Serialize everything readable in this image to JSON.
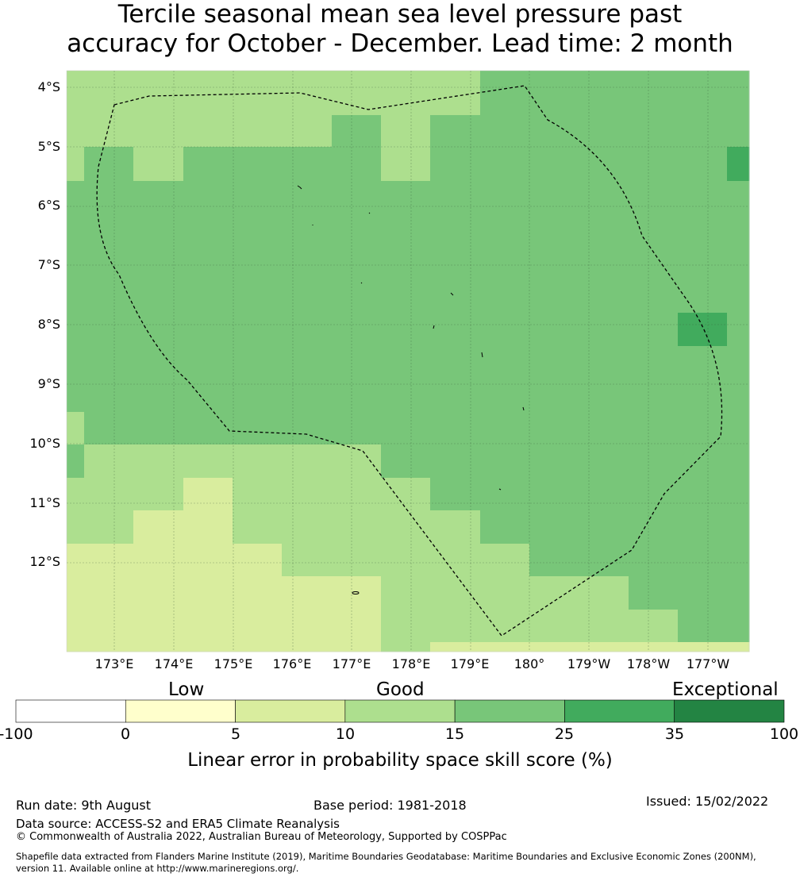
{
  "title_line1": "Tercile seasonal mean sea level pressure past",
  "title_line2": "accuracy for October - December. Lead time: 2 month",
  "map": {
    "lon_range": [
      "172°12'E",
      "176°36'W"
    ],
    "lat_range": [
      "3°36'S",
      "13°24'S"
    ],
    "lat_labels": [
      "4°S",
      "5°S",
      "6°S",
      "7°S",
      "8°S",
      "9°S",
      "10°S",
      "11°S",
      "12°S"
    ],
    "lon_labels": [
      "173°E",
      "174°E",
      "175°E",
      "176°E",
      "177°E",
      "178°E",
      "179°E",
      "180°",
      "179°W",
      "178°W",
      "177°W"
    ],
    "grid_lines": true,
    "colors": {
      "class_5_10": "#d9ed9e",
      "class_10_15": "#addf8e",
      "class_15_25": "#78c679",
      "class_25_35": "#41ab5d"
    },
    "boundary_style": "dashed"
  },
  "colorbar": {
    "categories": [
      "Low",
      "Good",
      "Exceptional"
    ],
    "ticks": [
      "-100",
      "0",
      "5",
      "10",
      "15",
      "25",
      "35",
      "100"
    ],
    "colors": [
      "#ffffff",
      "#ffffcc",
      "#d9ed9e",
      "#addf8e",
      "#78c679",
      "#41ab5d",
      "#238443"
    ],
    "label": "Linear error in probability space skill score (%)"
  },
  "footer": {
    "run_date": "Run date: 9th August",
    "base_period": "Base period: 1981-2018",
    "issued": "Issued: 15/02/2022",
    "data_source": "Data source: ACCESS-S2 and ERA5 Climate Reanalysis",
    "copyright": "© Commonwealth of Australia 2022, Australian Bureau of Meteorology, Supported by COSPPac",
    "shapefile_line1": "Shapefile data extracted from Flanders Marine Institute (2019), Maritime Boundaries Geodatabase: Maritime Boundaries and Exclusive Economic Zones (200NM),",
    "shapefile_line2": "version 11. Available online at http://www.marineregions.org/."
  }
}
